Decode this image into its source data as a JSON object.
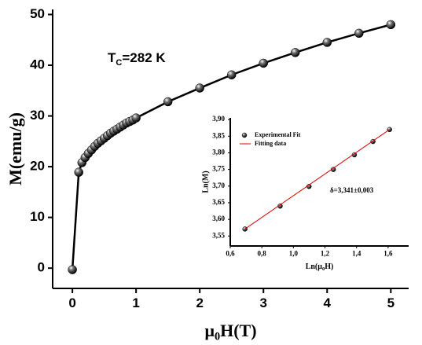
{
  "chart_data": [
    {
      "type": "line",
      "xlabel": [
        "μ",
        "0",
        "H(T)"
      ],
      "ylabel": "M(emu/g)",
      "annotation": [
        "T",
        "C",
        "=282 K"
      ],
      "xlim": [
        -0.31,
        5.28
      ],
      "ylim": [
        -4,
        51
      ],
      "xticks": [
        0,
        1,
        2,
        3,
        4,
        5
      ],
      "yticks": [
        0,
        10,
        20,
        30,
        40,
        50
      ],
      "series": [
        {
          "color": "#000000",
          "x": [
            0,
            0.1,
            0.15,
            0.2,
            0.25,
            0.3,
            0.35,
            0.4,
            0.45,
            0.5,
            0.55,
            0.6,
            0.65,
            0.7,
            0.75,
            0.8,
            0.85,
            0.9,
            0.95,
            1.0,
            1.5,
            2.0,
            2.5,
            3.0,
            3.5,
            4.0,
            4.5,
            5.0
          ],
          "values": [
            -0.3,
            18.9,
            20.8,
            21.8,
            22.6,
            23.3,
            24.0,
            24.6,
            25.1,
            25.6,
            26.1,
            26.6,
            27.0,
            27.4,
            27.8,
            28.2,
            28.6,
            28.9,
            29.2,
            29.6,
            32.8,
            35.5,
            38.1,
            40.4,
            42.5,
            44.5,
            46.3,
            48.0
          ]
        }
      ]
    },
    {
      "type": "scatter",
      "xlabel": [
        "Ln(μ",
        "0",
        "H)"
      ],
      "ylabel": "Ln(M)",
      "annotation": "δ=3,341±0,003",
      "legend": "upper left",
      "xlim": [
        0.6,
        1.73
      ],
      "ylim": [
        3.52,
        3.905
      ],
      "xticks": [
        {
          "value": 0.6,
          "label": "0,6"
        },
        {
          "value": 0.8,
          "label": "0,8"
        },
        {
          "value": 1.0,
          "label": "1,0"
        },
        {
          "value": 1.2,
          "label": "1,2"
        },
        {
          "value": 1.4,
          "label": "1,4"
        },
        {
          "value": 1.6,
          "label": "1,6"
        }
      ],
      "yticks": [
        {
          "value": 3.55,
          "label": "3,55"
        },
        {
          "value": 3.6,
          "label": "3,60"
        },
        {
          "value": 3.65,
          "label": "3,65"
        },
        {
          "value": 3.7,
          "label": "3,70"
        },
        {
          "value": 3.75,
          "label": "3,75"
        },
        {
          "value": 3.8,
          "label": "3,80"
        },
        {
          "value": 3.85,
          "label": "3,85"
        },
        {
          "value": 3.9,
          "label": "3,90"
        }
      ],
      "series": [
        {
          "name": "Experimental Fit",
          "type": "scatter",
          "color": "#000000",
          "x": [
            0.693,
            0.916,
            1.099,
            1.253,
            1.386,
            1.504,
            1.609
          ],
          "values": [
            3.571,
            3.64,
            3.699,
            3.75,
            3.794,
            3.834,
            3.87
          ]
        },
        {
          "name": "Fitting data",
          "type": "line",
          "color": "#e00000",
          "x": [
            0.693,
            1.609
          ],
          "values": [
            3.571,
            3.87
          ]
        }
      ]
    }
  ]
}
